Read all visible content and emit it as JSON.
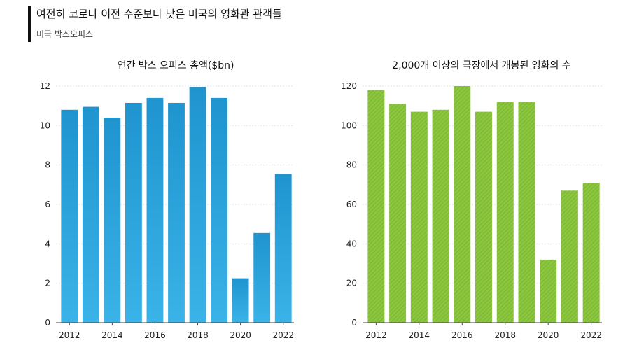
{
  "header": {
    "title": "여전히 코로나 이전 수준보다 낮은 미국의 영화관 관객들",
    "subtitle": "미국 박스오피스"
  },
  "chart_data": [
    {
      "type": "bar",
      "title": "연간 박스 오피스 총액($bn)",
      "categories": [
        "2012",
        "2013",
        "2014",
        "2015",
        "2016",
        "2017",
        "2018",
        "2019",
        "2020",
        "2021",
        "2022"
      ],
      "values": [
        10.8,
        10.95,
        10.4,
        11.15,
        11.4,
        11.15,
        11.95,
        11.4,
        2.25,
        4.55,
        7.55
      ],
      "x_tick_labels": [
        "2012",
        "2014",
        "2016",
        "2018",
        "2020",
        "2022"
      ],
      "y_ticks": [
        0,
        2,
        4,
        6,
        8,
        10,
        12
      ],
      "ylim": [
        0,
        12
      ],
      "grid": true,
      "color": "#2a9fd8"
    },
    {
      "type": "bar",
      "title": "2,000개 이상의 극장에서 개봉된 영화의 수",
      "categories": [
        "2012",
        "2013",
        "2014",
        "2015",
        "2016",
        "2017",
        "2018",
        "2019",
        "2020",
        "2021",
        "2022"
      ],
      "values": [
        118,
        111,
        107,
        108,
        120,
        107,
        112,
        112,
        32,
        67,
        71
      ],
      "x_tick_labels": [
        "2012",
        "2014",
        "2016",
        "2018",
        "2020",
        "2022"
      ],
      "y_ticks": [
        0,
        20,
        40,
        60,
        80,
        100,
        120
      ],
      "ylim": [
        0,
        120
      ],
      "grid": true,
      "color": "#84c13a"
    }
  ]
}
